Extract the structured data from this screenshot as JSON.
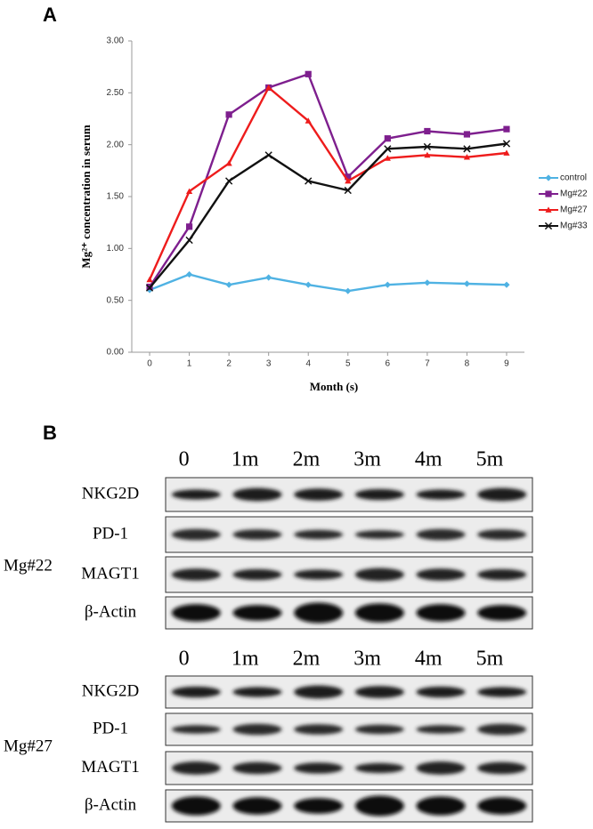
{
  "chart_data": {
    "type": "line",
    "y_label": "Mg²⁺ concentration in serum",
    "x_label": "Month (s)",
    "x": [
      0,
      1,
      2,
      3,
      4,
      5,
      6,
      7,
      8,
      9
    ],
    "xlim": [
      -0.45,
      9.45
    ],
    "xticks": [
      0,
      1,
      2,
      3,
      4,
      5,
      6,
      7,
      8,
      9
    ],
    "ylim": [
      0,
      3
    ],
    "yticks": [
      {
        "value": 0,
        "label": "0.00"
      },
      {
        "value": 0.5,
        "label": "0.50"
      },
      {
        "value": 1,
        "label": "1.00"
      },
      {
        "value": 1.5,
        "label": "1.50"
      },
      {
        "value": 2,
        "label": "2.00"
      },
      {
        "value": 2.5,
        "label": "2.50"
      },
      {
        "value": 3,
        "label": "3.00"
      }
    ],
    "grid": false,
    "legend": "right",
    "series": [
      {
        "name": "control",
        "color": "#4fb2e3",
        "marker": "diamond",
        "values": [
          0.6,
          0.75,
          0.65,
          0.72,
          0.65,
          0.59,
          0.65,
          0.67,
          0.66,
          0.65
        ]
      },
      {
        "name": "Mg#22",
        "color": "#7e1f8e",
        "marker": "square",
        "values": [
          0.63,
          1.21,
          2.29,
          2.55,
          2.68,
          1.69,
          2.06,
          2.13,
          2.1,
          2.15
        ]
      },
      {
        "name": "Mg#27",
        "color": "#ee1c1c",
        "marker": "triangle",
        "values": [
          0.7,
          1.55,
          1.82,
          2.55,
          2.23,
          1.65,
          1.87,
          1.9,
          1.88,
          1.92
        ]
      },
      {
        "name": "Mg#33",
        "color": "#111111",
        "marker": "x",
        "values": [
          0.62,
          1.08,
          1.65,
          1.9,
          1.65,
          1.56,
          1.96,
          1.98,
          1.96,
          2.01
        ]
      }
    ]
  },
  "panel_labels": [
    "A",
    "B"
  ],
  "blots": [
    {
      "group": "Mg#22",
      "columns": [
        "0",
        "1m",
        "2m",
        "3m",
        "4m",
        "5m"
      ],
      "rows": [
        "NKG2D",
        "PD-1",
        "MAGT1",
        "β-Actin"
      ]
    },
    {
      "group": "Mg#27",
      "columns": [
        "0",
        "1m",
        "2m",
        "3m",
        "4m",
        "5m"
      ],
      "rows": [
        "NKG2D",
        "PD-1",
        "MAGT1",
        "β-Actin"
      ]
    }
  ]
}
